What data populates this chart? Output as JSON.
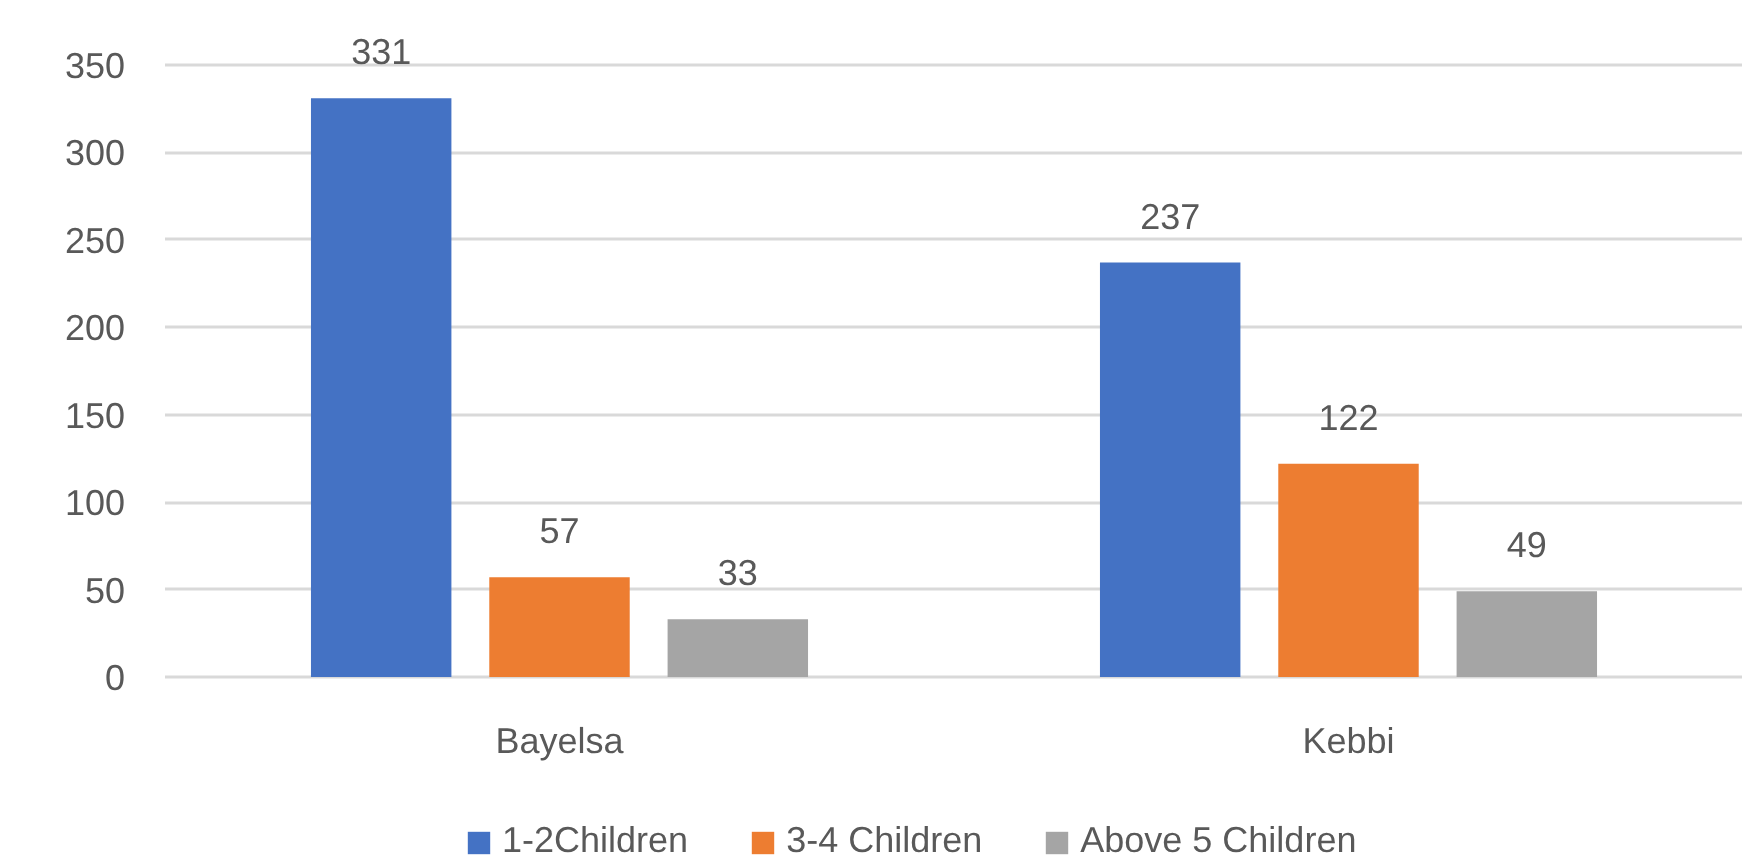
{
  "chart_data": {
    "type": "bar",
    "categories": [
      "Bayelsa",
      "Kebbi"
    ],
    "series": [
      {
        "name": "1-2Children",
        "color": "#4472c4",
        "values": [
          331,
          237
        ]
      },
      {
        "name": "3-4 Children",
        "color": "#ed7d31",
        "values": [
          57,
          122
        ]
      },
      {
        "name": "Above 5 Children",
        "color": "#a5a5a5",
        "values": [
          33,
          49
        ]
      }
    ],
    "ylim": [
      0,
      350
    ],
    "yticks": [
      0,
      50,
      100,
      150,
      200,
      250,
      300,
      350
    ],
    "grid": "y",
    "legend": "bottom",
    "data_labels": true
  }
}
